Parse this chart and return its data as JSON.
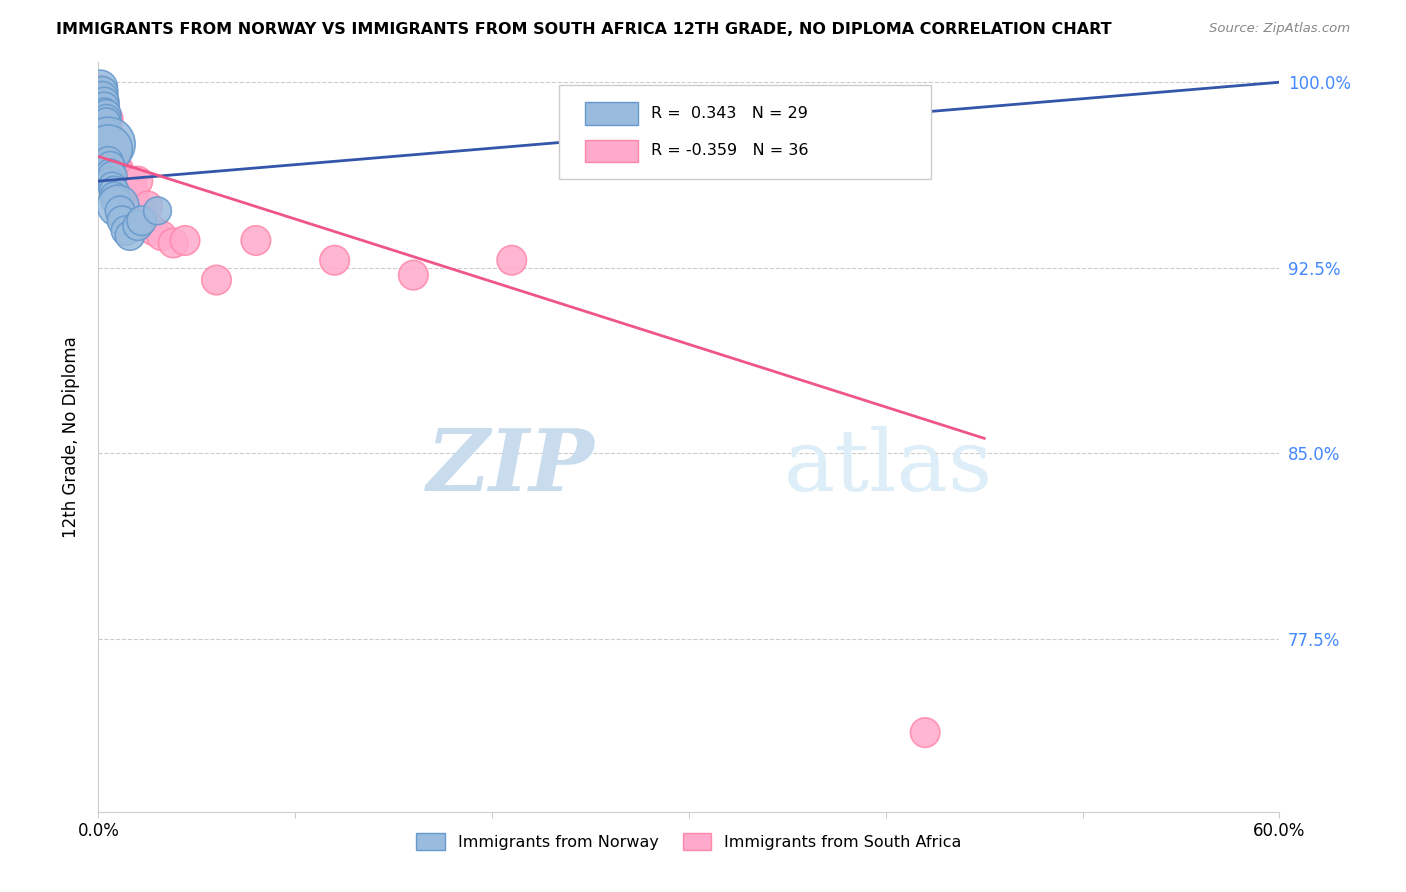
{
  "title": "IMMIGRANTS FROM NORWAY VS IMMIGRANTS FROM SOUTH AFRICA 12TH GRADE, NO DIPLOMA CORRELATION CHART",
  "source": "Source: ZipAtlas.com",
  "ylabel": "12th Grade, No Diploma",
  "xlim": [
    0.0,
    0.6
  ],
  "ylim": [
    0.705,
    1.008
  ],
  "xticks": [
    0.0,
    0.1,
    0.2,
    0.3,
    0.4,
    0.5,
    0.6
  ],
  "xticklabels": [
    "0.0%",
    "",
    "",
    "",
    "",
    "",
    "60.0%"
  ],
  "yticks": [
    0.775,
    0.85,
    0.925,
    1.0
  ],
  "yticklabels": [
    "77.5%",
    "85.0%",
    "92.5%",
    "100.0%"
  ],
  "legend_label1": "Immigrants from Norway",
  "legend_label2": "Immigrants from South Africa",
  "r1": 0.343,
  "n1": 29,
  "r2": -0.359,
  "n2": 36,
  "color_norway": "#99BBDD",
  "color_sa": "#FFAACC",
  "edge_color_norway": "#6699CC",
  "edge_color_sa": "#FF88AA",
  "trendline_color_norway": "#3355AA",
  "trendline_color_sa": "#EE5588",
  "watermark_zip": "ZIP",
  "watermark_atlas": "atlas",
  "norway_trendline_x0": 0.0,
  "norway_trendline_y0": 0.96,
  "norway_trendline_x1": 0.6,
  "norway_trendline_y1": 1.0,
  "sa_trendline_x0": 0.0,
  "sa_trendline_y0": 0.97,
  "sa_trendline_x1": 0.45,
  "sa_trendline_y1": 0.856,
  "norway_x": [
    0.001,
    0.002,
    0.002,
    0.003,
    0.003,
    0.003,
    0.004,
    0.004,
    0.004,
    0.004,
    0.005,
    0.005,
    0.005,
    0.006,
    0.006,
    0.006,
    0.007,
    0.007,
    0.008,
    0.008,
    0.009,
    0.01,
    0.011,
    0.012,
    0.014,
    0.016,
    0.02,
    0.022,
    0.03
  ],
  "norway_y": [
    0.998,
    0.996,
    0.994,
    0.992,
    0.99,
    0.988,
    0.987,
    0.985,
    0.984,
    0.98,
    0.975,
    0.973,
    0.968,
    0.966,
    0.963,
    0.96,
    0.962,
    0.958,
    0.956,
    0.954,
    0.952,
    0.95,
    0.948,
    0.944,
    0.94,
    0.938,
    0.942,
    0.944,
    0.948
  ],
  "norway_sizes": [
    60,
    50,
    50,
    45,
    45,
    40,
    45,
    45,
    40,
    40,
    150,
    120,
    45,
    45,
    45,
    40,
    45,
    40,
    45,
    40,
    45,
    90,
    45,
    45,
    45,
    45,
    45,
    45,
    40
  ],
  "sa_x": [
    0.001,
    0.002,
    0.002,
    0.003,
    0.003,
    0.004,
    0.004,
    0.005,
    0.005,
    0.005,
    0.006,
    0.007,
    0.008,
    0.008,
    0.009,
    0.01,
    0.01,
    0.012,
    0.013,
    0.015,
    0.016,
    0.017,
    0.018,
    0.02,
    0.022,
    0.025,
    0.028,
    0.032,
    0.038,
    0.044,
    0.06,
    0.08,
    0.12,
    0.16,
    0.21,
    0.42
  ],
  "sa_y": [
    0.997,
    0.994,
    0.992,
    0.99,
    0.988,
    0.986,
    0.984,
    0.985,
    0.98,
    0.978,
    0.975,
    0.972,
    0.97,
    0.968,
    0.966,
    0.965,
    0.963,
    0.96,
    0.96,
    0.956,
    0.955,
    0.96,
    0.955,
    0.96,
    0.948,
    0.95,
    0.94,
    0.938,
    0.935,
    0.936,
    0.92,
    0.936,
    0.928,
    0.922,
    0.928,
    0.737
  ],
  "sa_sizes": [
    45,
    45,
    45,
    45,
    45,
    45,
    45,
    45,
    45,
    45,
    45,
    45,
    45,
    45,
    45,
    45,
    45,
    45,
    45,
    45,
    45,
    45,
    45,
    45,
    45,
    45,
    45,
    45,
    45,
    45,
    45,
    45,
    45,
    45,
    45,
    45
  ]
}
